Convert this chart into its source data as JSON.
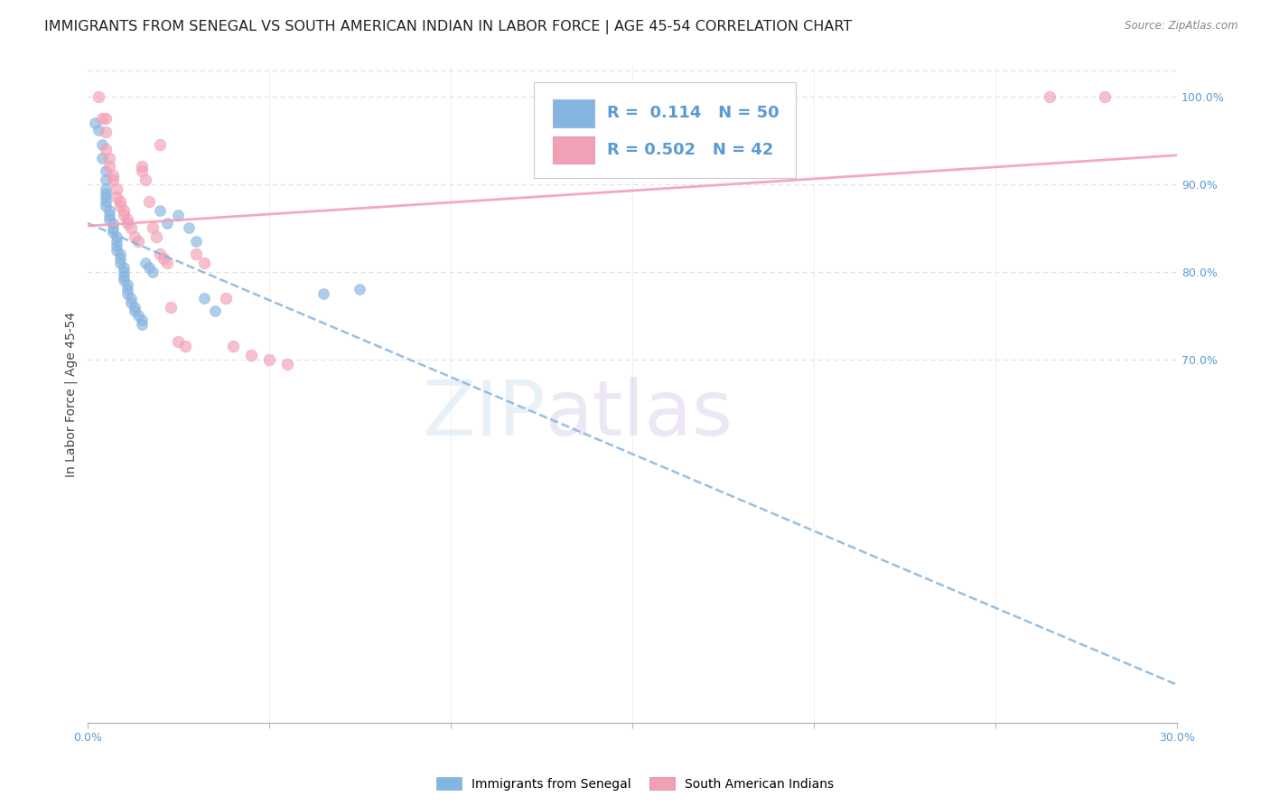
{
  "title": "IMMIGRANTS FROM SENEGAL VS SOUTH AMERICAN INDIAN IN LABOR FORCE | AGE 45-54 CORRELATION CHART",
  "source": "Source: ZipAtlas.com",
  "ylabel": "In Labor Force | Age 45-54",
  "xlim": [
    0.0,
    0.3
  ],
  "ylim": [
    0.285,
    1.035
  ],
  "xticks": [
    0.0,
    0.05,
    0.1,
    0.15,
    0.2,
    0.25,
    0.3
  ],
  "xticklabels": [
    "0.0%",
    "",
    "",
    "",
    "",
    "",
    "30.0%"
  ],
  "yticks_right": [
    0.7,
    0.8,
    0.9,
    1.0
  ],
  "ytick_right_labels": [
    "70.0%",
    "80.0%",
    "90.0%",
    "100.0%"
  ],
  "R_blue": 0.114,
  "N_blue": 50,
  "R_pink": 0.502,
  "N_pink": 42,
  "blue_color": "#85b4e0",
  "pink_color": "#f2a0b5",
  "blue_scatter": [
    [
      0.002,
      0.97
    ],
    [
      0.003,
      0.962
    ],
    [
      0.004,
      0.945
    ],
    [
      0.004,
      0.93
    ],
    [
      0.005,
      0.915
    ],
    [
      0.005,
      0.905
    ],
    [
      0.005,
      0.895
    ],
    [
      0.005,
      0.89
    ],
    [
      0.005,
      0.885
    ],
    [
      0.005,
      0.88
    ],
    [
      0.005,
      0.875
    ],
    [
      0.006,
      0.87
    ],
    [
      0.006,
      0.865
    ],
    [
      0.006,
      0.86
    ],
    [
      0.007,
      0.855
    ],
    [
      0.007,
      0.85
    ],
    [
      0.007,
      0.845
    ],
    [
      0.008,
      0.84
    ],
    [
      0.008,
      0.835
    ],
    [
      0.008,
      0.83
    ],
    [
      0.008,
      0.825
    ],
    [
      0.009,
      0.82
    ],
    [
      0.009,
      0.815
    ],
    [
      0.009,
      0.81
    ],
    [
      0.01,
      0.805
    ],
    [
      0.01,
      0.8
    ],
    [
      0.01,
      0.795
    ],
    [
      0.01,
      0.79
    ],
    [
      0.011,
      0.785
    ],
    [
      0.011,
      0.78
    ],
    [
      0.011,
      0.775
    ],
    [
      0.012,
      0.77
    ],
    [
      0.012,
      0.765
    ],
    [
      0.013,
      0.76
    ],
    [
      0.013,
      0.755
    ],
    [
      0.014,
      0.75
    ],
    [
      0.015,
      0.745
    ],
    [
      0.015,
      0.74
    ],
    [
      0.016,
      0.81
    ],
    [
      0.017,
      0.805
    ],
    [
      0.018,
      0.8
    ],
    [
      0.02,
      0.87
    ],
    [
      0.022,
      0.855
    ],
    [
      0.025,
      0.865
    ],
    [
      0.028,
      0.85
    ],
    [
      0.03,
      0.835
    ],
    [
      0.032,
      0.77
    ],
    [
      0.035,
      0.755
    ],
    [
      0.065,
      0.775
    ],
    [
      0.075,
      0.78
    ]
  ],
  "pink_scatter": [
    [
      0.003,
      1.0
    ],
    [
      0.004,
      0.975
    ],
    [
      0.005,
      0.975
    ],
    [
      0.005,
      0.96
    ],
    [
      0.005,
      0.94
    ],
    [
      0.006,
      0.93
    ],
    [
      0.006,
      0.92
    ],
    [
      0.007,
      0.91
    ],
    [
      0.007,
      0.905
    ],
    [
      0.008,
      0.895
    ],
    [
      0.008,
      0.885
    ],
    [
      0.009,
      0.88
    ],
    [
      0.009,
      0.875
    ],
    [
      0.01,
      0.87
    ],
    [
      0.01,
      0.865
    ],
    [
      0.011,
      0.86
    ],
    [
      0.011,
      0.855
    ],
    [
      0.012,
      0.85
    ],
    [
      0.013,
      0.84
    ],
    [
      0.014,
      0.835
    ],
    [
      0.015,
      0.92
    ],
    [
      0.015,
      0.915
    ],
    [
      0.016,
      0.905
    ],
    [
      0.017,
      0.88
    ],
    [
      0.018,
      0.85
    ],
    [
      0.019,
      0.84
    ],
    [
      0.02,
      0.945
    ],
    [
      0.02,
      0.82
    ],
    [
      0.021,
      0.815
    ],
    [
      0.022,
      0.81
    ],
    [
      0.023,
      0.76
    ],
    [
      0.025,
      0.72
    ],
    [
      0.027,
      0.715
    ],
    [
      0.03,
      0.82
    ],
    [
      0.032,
      0.81
    ],
    [
      0.038,
      0.77
    ],
    [
      0.04,
      0.715
    ],
    [
      0.045,
      0.705
    ],
    [
      0.05,
      0.7
    ],
    [
      0.055,
      0.695
    ],
    [
      0.265,
      1.0
    ],
    [
      0.28,
      1.0
    ]
  ],
  "watermark_zip": "ZIP",
  "watermark_atlas": "atlas",
  "grid_color": "#dddddd",
  "title_fontsize": 11.5,
  "tick_fontsize": 9,
  "right_tick_color": "#5b9bd5",
  "ylabel_fontsize": 10
}
